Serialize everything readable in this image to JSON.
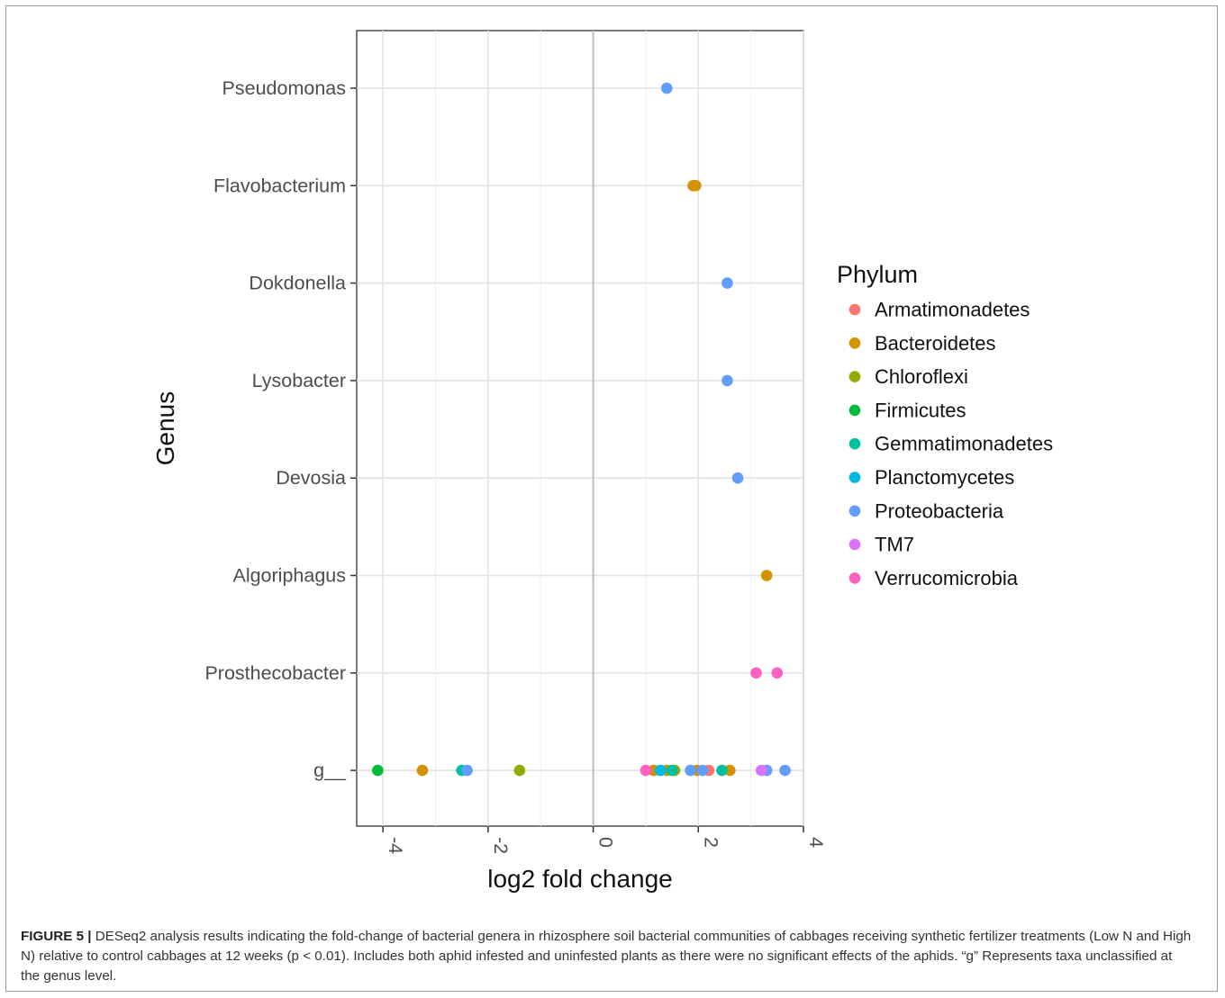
{
  "chart_data": {
    "type": "scatter",
    "xlabel": "log2 fold change",
    "ylabel": "Genus",
    "xlim": [
      -4.5,
      4.0
    ],
    "x_ticks": [
      -4,
      -2,
      0,
      2,
      4
    ],
    "x_tick_labels": [
      "-4",
      "-2",
      "0",
      "2",
      "4"
    ],
    "x_tick_rotation": "rotated 90° clockwise",
    "categories": [
      "Pseudomonas",
      "Flavobacterium",
      "Dokdonella",
      "Lysobacter",
      "Devosia",
      "Algoriphagus",
      "Prosthecobacter",
      "g__"
    ],
    "reference_line_x": 0,
    "grid": true,
    "legend": {
      "title": "Phylum",
      "position": "right",
      "entries": [
        {
          "name": "Armatimonadetes",
          "color": "#F8766D"
        },
        {
          "name": "Bacteroidetes",
          "color": "#D39200"
        },
        {
          "name": "Chloroflexi",
          "color": "#93AA00"
        },
        {
          "name": "Firmicutes",
          "color": "#00BA38"
        },
        {
          "name": "Gemmatimonadetes",
          "color": "#00C19F"
        },
        {
          "name": "Planctomycetes",
          "color": "#00B9E3"
        },
        {
          "name": "Proteobacteria",
          "color": "#619CFF"
        },
        {
          "name": "TM7",
          "color": "#DB72FB"
        },
        {
          "name": "Verrucomicrobia",
          "color": "#FF61C3"
        }
      ]
    },
    "series": [
      {
        "name": "Armatimonadetes",
        "points": [
          {
            "genus": "g__",
            "x": 2.2
          }
        ]
      },
      {
        "name": "Bacteroidetes",
        "points": [
          {
            "genus": "Flavobacterium",
            "x": 1.9
          },
          {
            "genus": "Flavobacterium",
            "x": 1.95
          },
          {
            "genus": "Algoriphagus",
            "x": 3.3
          },
          {
            "genus": "g__",
            "x": -3.25
          },
          {
            "genus": "g__",
            "x": 1.15
          },
          {
            "genus": "g__",
            "x": 1.4
          },
          {
            "genus": "g__",
            "x": 1.97
          },
          {
            "genus": "g__",
            "x": 2.6
          }
        ]
      },
      {
        "name": "Chloroflexi",
        "points": [
          {
            "genus": "g__",
            "x": -1.4
          },
          {
            "genus": "g__",
            "x": 1.55
          }
        ]
      },
      {
        "name": "Firmicutes",
        "points": [
          {
            "genus": "g__",
            "x": -4.1
          }
        ]
      },
      {
        "name": "Gemmatimonadetes",
        "points": [
          {
            "genus": "g__",
            "x": -2.5
          },
          {
            "genus": "g__",
            "x": 1.5
          },
          {
            "genus": "g__",
            "x": 2.45
          }
        ]
      },
      {
        "name": "Planctomycetes",
        "points": [
          {
            "genus": "g__",
            "x": 1.28
          }
        ]
      },
      {
        "name": "Proteobacteria",
        "points": [
          {
            "genus": "Pseudomonas",
            "x": 1.4
          },
          {
            "genus": "Dokdonella",
            "x": 2.55
          },
          {
            "genus": "Lysobacter",
            "x": 2.55
          },
          {
            "genus": "Devosia",
            "x": 2.75
          },
          {
            "genus": "g__",
            "x": -2.4
          },
          {
            "genus": "g__",
            "x": 1.85
          },
          {
            "genus": "g__",
            "x": 2.08
          },
          {
            "genus": "g__",
            "x": 3.3
          },
          {
            "genus": "g__",
            "x": 3.65
          }
        ]
      },
      {
        "name": "TM7",
        "points": [
          {
            "genus": "g__",
            "x": 3.2
          }
        ]
      },
      {
        "name": "Verrucomicrobia",
        "points": [
          {
            "genus": "Prosthecobacter",
            "x": 3.1
          },
          {
            "genus": "Prosthecobacter",
            "x": 3.5
          },
          {
            "genus": "g__",
            "x": 1.0
          }
        ]
      }
    ]
  },
  "caption": {
    "label": "FIGURE 5 |",
    "text": "DESeq2 analysis results indicating the fold-change of bacterial genera in rhizosphere soil bacterial communities of cabbages receiving synthetic fertilizer treatments (Low N and High N) relative to control cabbages at 12 weeks (p < 0.01). Includes both aphid infested and uninfested plants as there were no significant effects of the aphids. “g” Represents taxa unclassified at the genus level."
  }
}
